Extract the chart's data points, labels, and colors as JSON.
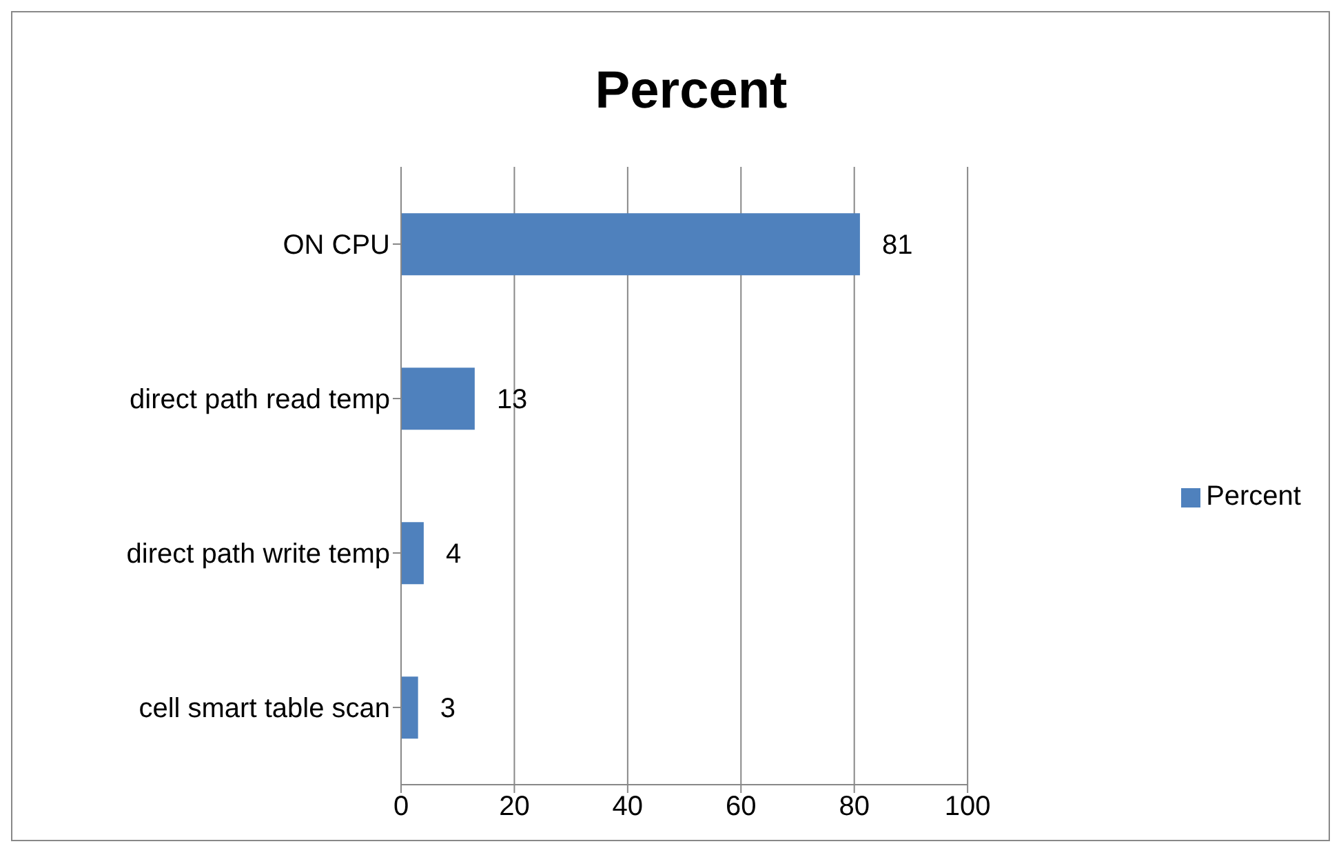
{
  "chart_data": {
    "type": "bar",
    "title": "Percent",
    "orientation": "horizontal",
    "categories": [
      "ON CPU",
      "direct path read temp",
      "direct path write temp",
      "cell smart table scan"
    ],
    "series": [
      {
        "name": "Percent",
        "color": "#4f81bd",
        "values": [
          81,
          13,
          4,
          3
        ]
      }
    ],
    "xlim": [
      0,
      100
    ],
    "xticks": [
      0,
      20,
      40,
      60,
      80,
      100
    ],
    "grid": "x",
    "legend": "right",
    "data_labels": true
  }
}
